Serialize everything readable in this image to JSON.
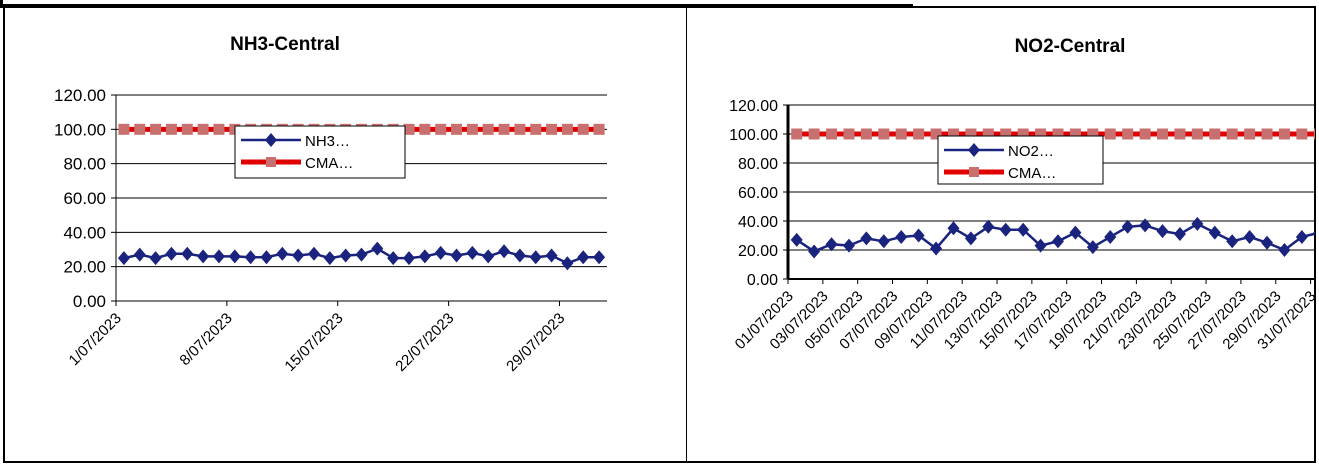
{
  "chart_data": [
    {
      "type": "line",
      "title": "NH3-Central",
      "ylim": [
        0,
        120
      ],
      "yticks": [
        "0.00",
        "20.00",
        "40.00",
        "60.00",
        "80.00",
        "100.00",
        "120.00"
      ],
      "x_tick_labels": [
        "1/07/2023",
        "8/07/2023",
        "15/07/2023",
        "22/07/2023",
        "29/07/2023"
      ],
      "grid": true,
      "legend": "center",
      "series": [
        {
          "name": "NH3…",
          "color": "#1a237e",
          "marker": "diamond",
          "values": [
            25,
            27,
            25,
            27.5,
            27.5,
            26,
            26,
            26,
            25.5,
            25.5,
            27.5,
            26.5,
            27.5,
            25,
            26.5,
            27,
            30.5,
            25,
            25,
            26,
            28,
            26.5,
            28,
            26,
            29,
            26.5,
            25.5,
            26.5,
            22,
            25.5,
            25.5
          ]
        },
        {
          "name": "CMA…",
          "color": "#e00000",
          "marker": "square",
          "values": [
            100,
            100,
            100,
            100,
            100,
            100,
            100,
            100,
            100,
            100,
            100,
            100,
            100,
            100,
            100,
            100,
            100,
            100,
            100,
            100,
            100,
            100,
            100,
            100,
            100,
            100,
            100,
            100,
            100,
            100,
            100
          ]
        }
      ]
    },
    {
      "type": "line",
      "title": "NO2-Central",
      "ylim": [
        0,
        120
      ],
      "yticks": [
        "0.00",
        "20.00",
        "40.00",
        "60.00",
        "80.00",
        "100.00",
        "120.00"
      ],
      "x_tick_labels": [
        "01/07/2023",
        "03/07/2023",
        "05/07/2023",
        "07/07/2023",
        "09/07/2023",
        "11/07/2023",
        "13/07/2023",
        "15/07/2023",
        "17/07/2023",
        "19/07/2023",
        "21/07/2023",
        "23/07/2023",
        "25/07/2023",
        "27/07/2023",
        "29/07/2023",
        "31/07/2023"
      ],
      "grid": true,
      "legend": "center",
      "series": [
        {
          "name": "NO2…",
          "color": "#1a237e",
          "marker": "diamond",
          "values": [
            27,
            19,
            24,
            23,
            28,
            26,
            29,
            30,
            21,
            35,
            28,
            36,
            34,
            34,
            23,
            26,
            32,
            22,
            29,
            36,
            37,
            33,
            31,
            38,
            32,
            26,
            29,
            25,
            20,
            29,
            32
          ]
        },
        {
          "name": "CMA…",
          "color": "#e00000",
          "marker": "square",
          "values": [
            100,
            100,
            100,
            100,
            100,
            100,
            100,
            100,
            100,
            100,
            100,
            100,
            100,
            100,
            100,
            100,
            100,
            100,
            100,
            100,
            100,
            100,
            100,
            100,
            100,
            100,
            100,
            100,
            100,
            100,
            100
          ]
        }
      ]
    }
  ]
}
